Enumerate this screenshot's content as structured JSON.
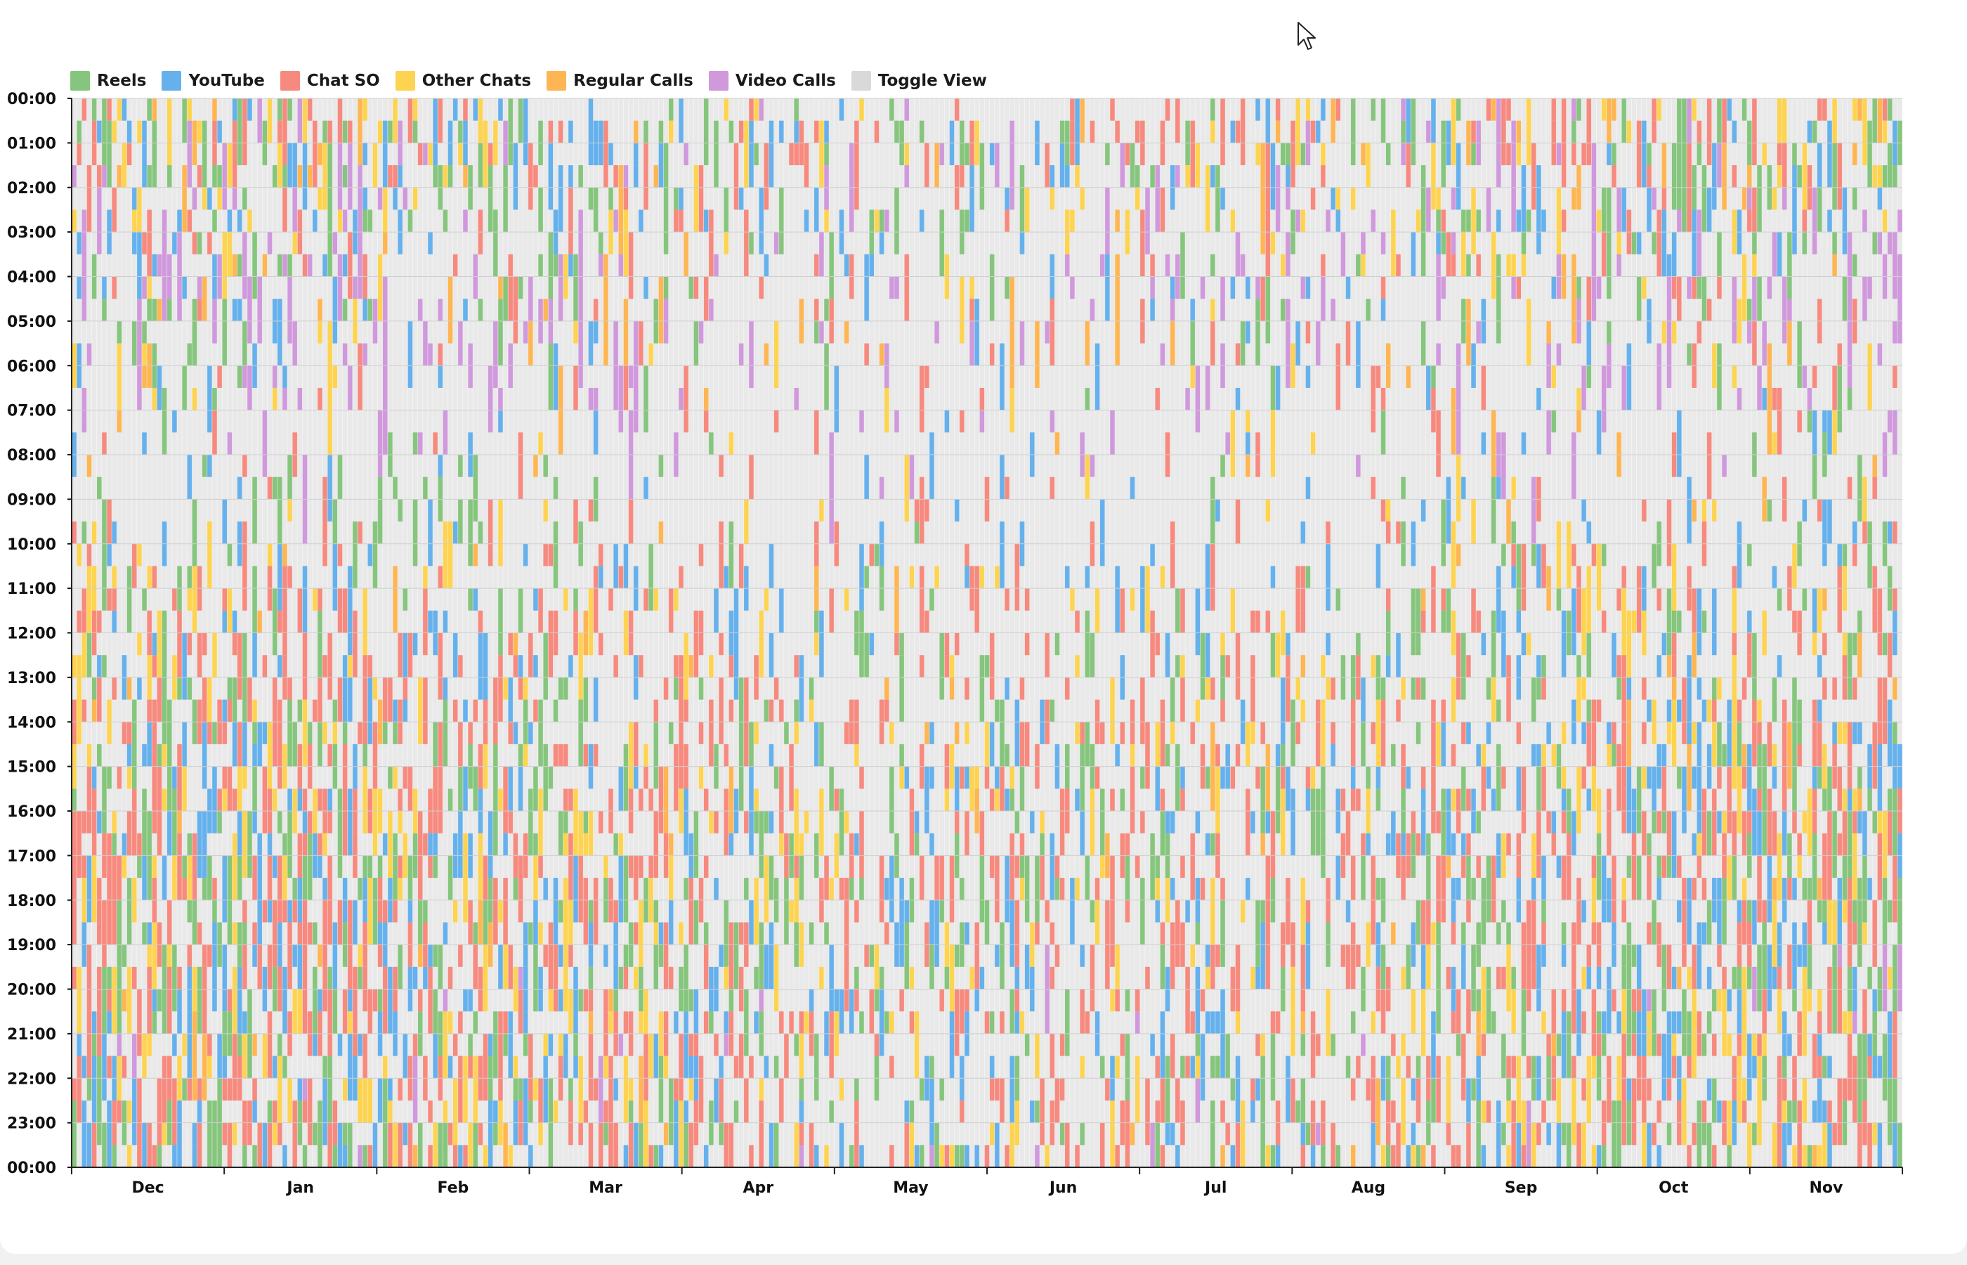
{
  "legend": {
    "items": [
      {
        "label": "Reels",
        "color": "#86c57d"
      },
      {
        "label": "YouTube",
        "color": "#66b1ec"
      },
      {
        "label": "Chat SO",
        "color": "#f68a7f"
      },
      {
        "label": "Other Chats",
        "color": "#fdd352"
      },
      {
        "label": "Regular Calls",
        "color": "#fdb653"
      },
      {
        "label": "Video Calls",
        "color": "#cf99dc"
      }
    ],
    "toggle": {
      "label": "Toggle View",
      "color": "#d9d9d9"
    }
  },
  "chart_data": {
    "type": "heatmap",
    "title": "",
    "xlabel": "",
    "ylabel": "",
    "x_tick_labels": [
      "Dec",
      "Jan",
      "Feb",
      "Mar",
      "Apr",
      "May",
      "Jun",
      "Jul",
      "Aug",
      "Sep",
      "Oct",
      "Nov"
    ],
    "y_tick_labels": [
      "00:00",
      "01:00",
      "02:00",
      "03:00",
      "04:00",
      "05:00",
      "06:00",
      "07:00",
      "08:00",
      "09:00",
      "10:00",
      "11:00",
      "12:00",
      "13:00",
      "14:00",
      "15:00",
      "16:00",
      "17:00",
      "18:00",
      "19:00",
      "20:00",
      "21:00",
      "22:00",
      "23:00",
      "00:00"
    ],
    "grid": true,
    "legend_position": "top-left",
    "empty_color": "#e9e9e9",
    "categories": [
      "Reels",
      "YouTube",
      "Chat SO",
      "Other Chats",
      "Regular Calls",
      "Video Calls"
    ],
    "hourly_activity_share": {
      "Reels": [
        0.1,
        0.09,
        0.07,
        0.05,
        0.05,
        0.04,
        0.03,
        0.02,
        0.03,
        0.04,
        0.05,
        0.06,
        0.07,
        0.08,
        0.1,
        0.11,
        0.12,
        0.12,
        0.12,
        0.12,
        0.12,
        0.12,
        0.11,
        0.1
      ],
      "YouTube": [
        0.1,
        0.1,
        0.08,
        0.06,
        0.05,
        0.04,
        0.03,
        0.03,
        0.04,
        0.05,
        0.06,
        0.07,
        0.08,
        0.09,
        0.1,
        0.11,
        0.12,
        0.12,
        0.12,
        0.13,
        0.13,
        0.13,
        0.12,
        0.11
      ],
      "Chat SO": [
        0.1,
        0.09,
        0.07,
        0.05,
        0.04,
        0.03,
        0.03,
        0.03,
        0.04,
        0.06,
        0.09,
        0.12,
        0.14,
        0.16,
        0.17,
        0.18,
        0.18,
        0.18,
        0.18,
        0.18,
        0.18,
        0.18,
        0.18,
        0.16
      ],
      "Other Chats": [
        0.07,
        0.06,
        0.05,
        0.04,
        0.03,
        0.03,
        0.02,
        0.02,
        0.02,
        0.03,
        0.04,
        0.05,
        0.06,
        0.07,
        0.08,
        0.09,
        0.09,
        0.09,
        0.09,
        0.09,
        0.09,
        0.09,
        0.09,
        0.08
      ],
      "Regular Calls": [
        0.03,
        0.03,
        0.03,
        0.03,
        0.03,
        0.03,
        0.02,
        0.01,
        0.01,
        0.01,
        0.01,
        0.01,
        0.01,
        0.01,
        0.01,
        0.01,
        0.01,
        0.01,
        0.01,
        0.01,
        0.01,
        0.01,
        0.01,
        0.02
      ],
      "Video Calls": [
        0.04,
        0.06,
        0.08,
        0.09,
        0.09,
        0.07,
        0.05,
        0.03,
        0.01,
        0.0,
        0.0,
        0.0,
        0.0,
        0.0,
        0.0,
        0.0,
        0.0,
        0.0,
        0.0,
        0.01,
        0.01,
        0.01,
        0.01,
        0.02
      ]
    }
  }
}
